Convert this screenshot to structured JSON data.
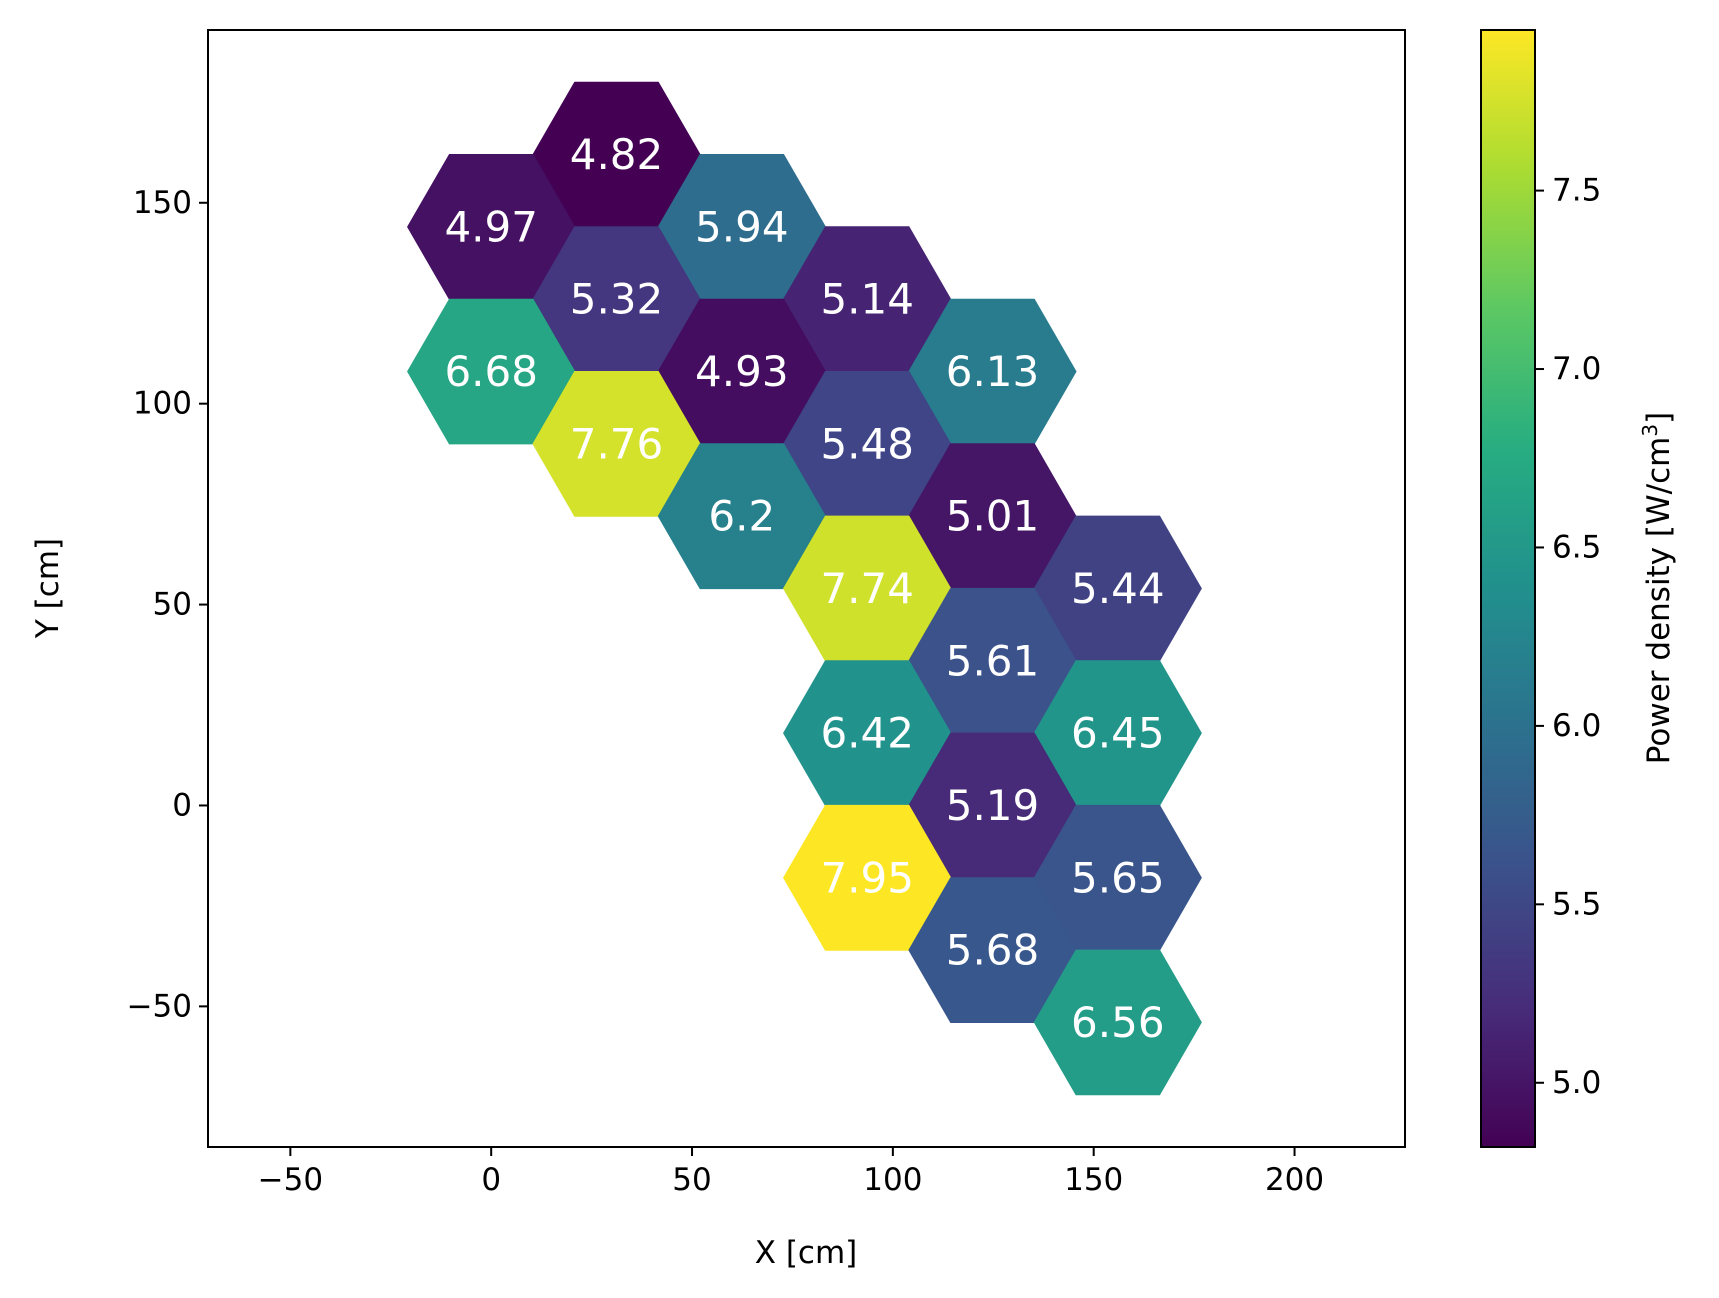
{
  "chart_data": {
    "type": "heatmap",
    "title": "",
    "xlabel": "X [cm]",
    "ylabel": "Y [cm]",
    "xlim": [
      -70.5,
      227.5
    ],
    "ylim": [
      -85,
      193
    ],
    "xticks": [
      -50,
      0,
      50,
      100,
      150,
      200
    ],
    "yticks": [
      -50,
      0,
      50,
      100,
      150
    ],
    "xtick_labels": [
      "−50",
      "0",
      "50",
      "100",
      "150",
      "200"
    ],
    "ytick_labels": [
      "−50",
      "0",
      "50",
      "100",
      "150"
    ],
    "grid": false,
    "cell_shape": "hexagon",
    "cells": [
      {
        "x": 31.2,
        "y": 162.0,
        "value": 4.82,
        "label": "4.82"
      },
      {
        "x": 0.0,
        "y": 144.0,
        "value": 4.97,
        "label": "4.97"
      },
      {
        "x": 62.4,
        "y": 144.0,
        "value": 5.94,
        "label": "5.94"
      },
      {
        "x": 31.2,
        "y": 126.0,
        "value": 5.32,
        "label": "5.32"
      },
      {
        "x": 93.6,
        "y": 126.0,
        "value": 5.14,
        "label": "5.14"
      },
      {
        "x": 0.0,
        "y": 108.0,
        "value": 6.68,
        "label": "6.68"
      },
      {
        "x": 62.4,
        "y": 108.0,
        "value": 4.93,
        "label": "4.93"
      },
      {
        "x": 124.8,
        "y": 108.0,
        "value": 6.13,
        "label": "6.13"
      },
      {
        "x": 31.2,
        "y": 90.0,
        "value": 7.76,
        "label": "7.76"
      },
      {
        "x": 93.6,
        "y": 90.0,
        "value": 5.48,
        "label": "5.48"
      },
      {
        "x": 62.4,
        "y": 72.0,
        "value": 6.2,
        "label": "6.2"
      },
      {
        "x": 124.8,
        "y": 72.0,
        "value": 5.01,
        "label": "5.01"
      },
      {
        "x": 93.6,
        "y": 54.0,
        "value": 7.74,
        "label": "7.74"
      },
      {
        "x": 156.0,
        "y": 54.0,
        "value": 5.44,
        "label": "5.44"
      },
      {
        "x": 124.8,
        "y": 36.0,
        "value": 5.61,
        "label": "5.61"
      },
      {
        "x": 93.6,
        "y": 18.0,
        "value": 6.42,
        "label": "6.42"
      },
      {
        "x": 156.0,
        "y": 18.0,
        "value": 6.45,
        "label": "6.45"
      },
      {
        "x": 124.8,
        "y": 0.0,
        "value": 5.19,
        "label": "5.19"
      },
      {
        "x": 93.6,
        "y": -18.0,
        "value": 7.95,
        "label": "7.95"
      },
      {
        "x": 156.0,
        "y": -18.0,
        "value": 5.65,
        "label": "5.65"
      },
      {
        "x": 124.8,
        "y": -36.0,
        "value": 5.68,
        "label": "5.68"
      },
      {
        "x": 156.0,
        "y": -54.0,
        "value": 6.56,
        "label": "6.56"
      }
    ],
    "colorbar": {
      "label_prefix": "Power density [W/cm",
      "label_sup": "3",
      "label_suffix": "]",
      "colormap": "viridis",
      "range": [
        4.82,
        7.95
      ],
      "ticks": [
        5.0,
        5.5,
        6.0,
        6.5,
        7.0,
        7.5
      ],
      "tick_labels": [
        "5.0",
        "5.5",
        "6.0",
        "6.5",
        "7.0",
        "7.5"
      ]
    }
  }
}
